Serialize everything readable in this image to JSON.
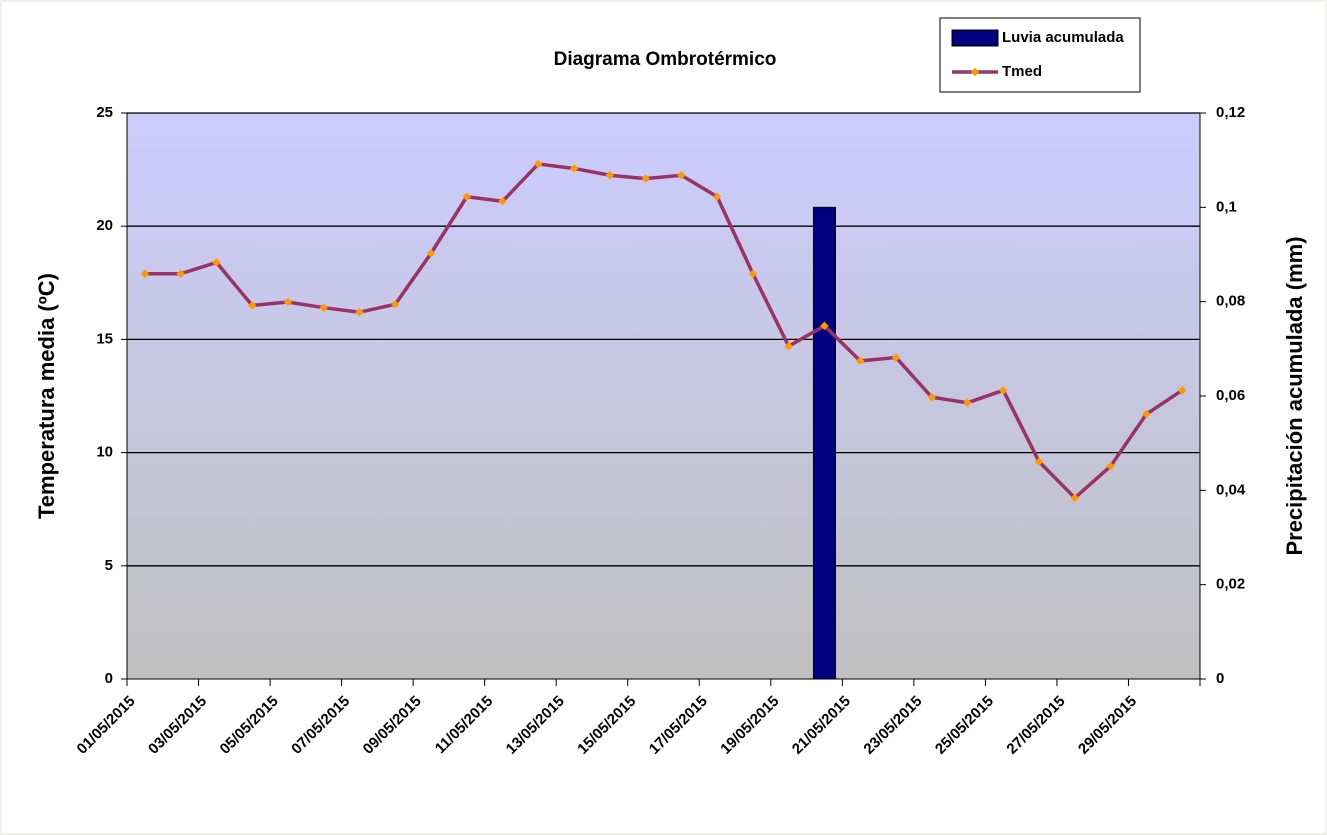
{
  "chart_data": {
    "type": "bar_line",
    "title": "Diagrama Ombrotérmico",
    "y_label": "Temperatura media (ºC)",
    "y2_label": "Precipitación acumulada (mm)",
    "categories": [
      "01/05/2015",
      null,
      "03/05/2015",
      null,
      "05/05/2015",
      null,
      "07/05/2015",
      null,
      "09/05/2015",
      null,
      "11/05/2015",
      null,
      "13/05/2015",
      null,
      "15/05/2015",
      null,
      "17/05/2015",
      null,
      "19/05/2015",
      null,
      "21/05/2015",
      null,
      "23/05/2015",
      null,
      "25/05/2015",
      null,
      "27/05/2015",
      null,
      "29/05/2015",
      null
    ],
    "series": [
      {
        "name": "Luvia acumulada",
        "type": "bar",
        "axis": "y2",
        "color": "#000080",
        "values": [
          0,
          0,
          0,
          0,
          0,
          0,
          0,
          0,
          0,
          0,
          0,
          0,
          0,
          0,
          0,
          0,
          0,
          0,
          0,
          0.1,
          0,
          0,
          0,
          0,
          0,
          0,
          0,
          0,
          0,
          0
        ]
      },
      {
        "name": "Tmed",
        "type": "line",
        "axis": "y",
        "color": "#993366",
        "marker_color": "#ff9900",
        "values": [
          17.9,
          17.9,
          18.4,
          16.5,
          16.65,
          16.4,
          16.2,
          16.55,
          18.8,
          21.3,
          21.1,
          22.75,
          22.55,
          22.25,
          22.1,
          22.25,
          21.3,
          17.9,
          14.7,
          15.6,
          14.05,
          14.2,
          12.45,
          12.2,
          12.75,
          9.6,
          8.0,
          9.4,
          11.7,
          12.75
        ]
      }
    ],
    "ylim": [
      0,
      25
    ],
    "yticks": [
      0,
      5,
      10,
      15,
      20,
      25
    ],
    "y2lim": [
      0,
      0.12
    ],
    "y2ticks": [
      0,
      {
        "value": 0.02,
        "label": "0,02"
      },
      {
        "value": 0.04,
        "label": "0,04"
      },
      {
        "value": 0.06,
        "label": "0,06"
      },
      {
        "value": 0.08,
        "label": "0,08"
      },
      {
        "value": 0.1,
        "label": "0,1"
      },
      {
        "value": 0.12,
        "label": "0,12"
      }
    ],
    "grid": true,
    "legend": "top-right"
  }
}
